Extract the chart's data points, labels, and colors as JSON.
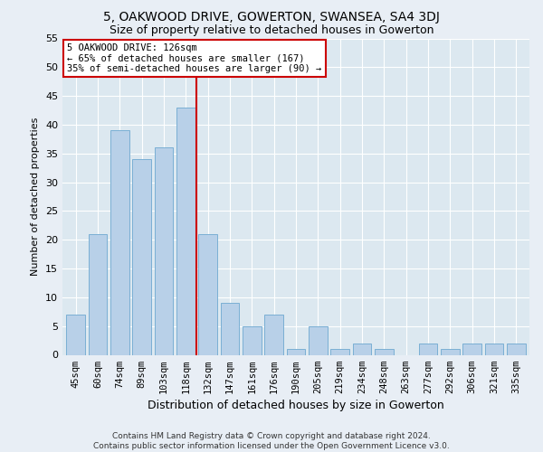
{
  "title": "5, OAKWOOD DRIVE, GOWERTON, SWANSEA, SA4 3DJ",
  "subtitle": "Size of property relative to detached houses in Gowerton",
  "xlabel": "Distribution of detached houses by size in Gowerton",
  "ylabel": "Number of detached properties",
  "categories": [
    "45sqm",
    "60sqm",
    "74sqm",
    "89sqm",
    "103sqm",
    "118sqm",
    "132sqm",
    "147sqm",
    "161sqm",
    "176sqm",
    "190sqm",
    "205sqm",
    "219sqm",
    "234sqm",
    "248sqm",
    "263sqm",
    "277sqm",
    "292sqm",
    "306sqm",
    "321sqm",
    "335sqm"
  ],
  "values": [
    7,
    21,
    39,
    34,
    36,
    43,
    21,
    9,
    5,
    7,
    1,
    5,
    1,
    2,
    1,
    0,
    2,
    1,
    2,
    2,
    2
  ],
  "bar_color": "#b8d0e8",
  "bar_edge_color": "#7aafd4",
  "vline_pos": 5.5,
  "vline_color": "#cc0000",
  "annotation_text": "5 OAKWOOD DRIVE: 126sqm\n← 65% of detached houses are smaller (167)\n35% of semi-detached houses are larger (90) →",
  "annotation_box_color": "white",
  "annotation_box_edge_color": "#cc0000",
  "ylim": [
    0,
    55
  ],
  "yticks": [
    0,
    5,
    10,
    15,
    20,
    25,
    30,
    35,
    40,
    45,
    50,
    55
  ],
  "footer": "Contains HM Land Registry data © Crown copyright and database right 2024.\nContains public sector information licensed under the Open Government Licence v3.0.",
  "bg_color": "#e8eef5",
  "plot_bg_color": "#dce8f0",
  "grid_color": "#ffffff",
  "title_fontsize": 10,
  "subtitle_fontsize": 9,
  "ylabel_fontsize": 8,
  "xlabel_fontsize": 9,
  "tick_fontsize": 7.5,
  "annotation_fontsize": 7.5
}
